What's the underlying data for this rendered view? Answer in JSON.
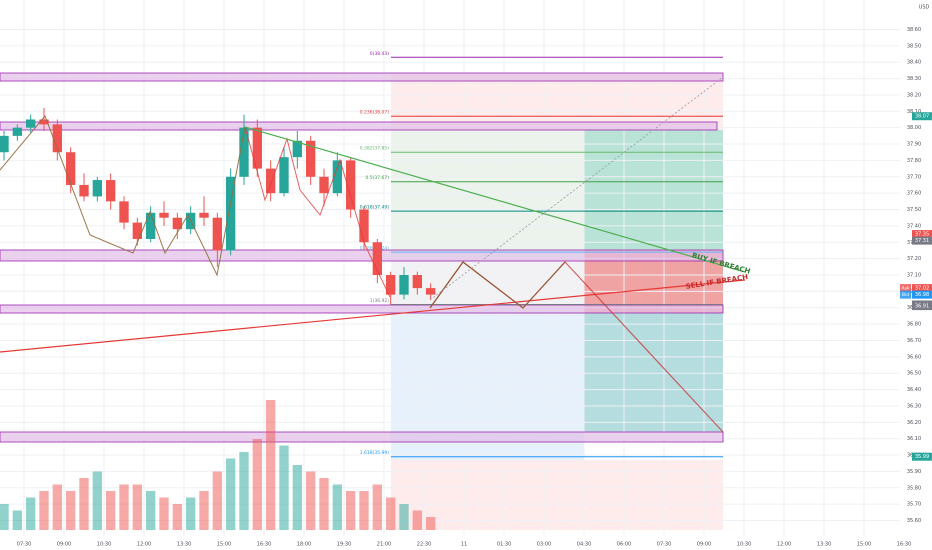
{
  "chart_data": {
    "type": "candlestick",
    "currency": "USD",
    "xlim": [
      -0.9,
      32.85
    ],
    "ylim": [
      35.42,
      38.78
    ],
    "grid": true,
    "up_color": "#26a69a",
    "down_color": "#ef5350",
    "xticks": [
      {
        "value": 0,
        "label": "07:30"
      },
      {
        "value": 1.5,
        "label": "09:00"
      },
      {
        "value": 3,
        "label": "10:30"
      },
      {
        "value": 4.5,
        "label": "12:00"
      },
      {
        "value": 6,
        "label": "13:30"
      },
      {
        "value": 7.5,
        "label": "15:00"
      },
      {
        "value": 9,
        "label": "16:30"
      },
      {
        "value": 10.5,
        "label": "18:00"
      },
      {
        "value": 12,
        "label": "19:30"
      },
      {
        "value": 13.5,
        "label": "21:00"
      },
      {
        "value": 15,
        "label": "22:30"
      },
      {
        "value": 16.5,
        "label": "11"
      },
      {
        "value": 18,
        "label": "01:30"
      },
      {
        "value": 19.5,
        "label": "03:00"
      },
      {
        "value": 21,
        "label": "04:30"
      },
      {
        "value": 22.5,
        "label": "06:00"
      },
      {
        "value": 24,
        "label": "07:30"
      },
      {
        "value": 25.5,
        "label": "09:00"
      },
      {
        "value": 27,
        "label": "10:30"
      },
      {
        "value": 28.5,
        "label": "12:00"
      },
      {
        "value": 30,
        "label": "13:30"
      },
      {
        "value": 31.5,
        "label": "15:00"
      },
      {
        "value": 33,
        "label": "16:30"
      }
    ],
    "yticks": [
      {
        "value": 38.6,
        "label": "38.60"
      },
      {
        "value": 38.5,
        "label": "38.50"
      },
      {
        "value": 38.4,
        "label": "38.40"
      },
      {
        "value": 38.3,
        "label": "38.30"
      },
      {
        "value": 38.2,
        "label": "38.20"
      },
      {
        "value": 38.1,
        "label": "38.10"
      },
      {
        "value": 38,
        "label": "38.00"
      },
      {
        "value": 37.9,
        "label": "37.90"
      },
      {
        "value": 37.8,
        "label": "37.80"
      },
      {
        "value": 37.7,
        "label": "37.70"
      },
      {
        "value": 37.6,
        "label": "37.60"
      },
      {
        "value": 37.5,
        "label": "37.50"
      },
      {
        "value": 37.4,
        "label": "37.40"
      },
      {
        "value": 37.3,
        "label": "37.30"
      },
      {
        "value": 37.2,
        "label": "37.20"
      },
      {
        "value": 37.1,
        "label": "37.10"
      },
      {
        "value": 37,
        "label": "37.00"
      },
      {
        "value": 36.9,
        "label": "36.90"
      },
      {
        "value": 36.8,
        "label": "36.80"
      },
      {
        "value": 36.7,
        "label": "36.70"
      },
      {
        "value": 36.6,
        "label": "36.60"
      },
      {
        "value": 36.5,
        "label": "36.50"
      },
      {
        "value": 36.4,
        "label": "36.40"
      },
      {
        "value": 36.3,
        "label": "36.30"
      },
      {
        "value": 36.2,
        "label": "36.20"
      },
      {
        "value": 36.1,
        "label": "36.10"
      },
      {
        "value": 36,
        "label": "36.00"
      },
      {
        "value": 35.9,
        "label": "35.90"
      },
      {
        "value": 35.8,
        "label": "35.80"
      },
      {
        "value": 35.7,
        "label": "35.70"
      },
      {
        "value": 35.6,
        "label": "35.60"
      }
    ],
    "x": [
      -0.75,
      -0.25,
      0.25,
      0.75,
      1.25,
      1.75,
      2.25,
      2.75,
      3.25,
      3.75,
      4.25,
      4.75,
      5.25,
      5.75,
      6.25,
      6.75,
      7.25,
      7.75,
      8.25,
      8.75,
      9.25,
      9.75,
      10.25,
      10.75,
      11.25,
      11.75,
      12.25,
      12.75,
      13.25,
      13.75,
      14.25,
      14.75,
      15.25
    ],
    "open": [
      37.85,
      37.95,
      38.0,
      38.05,
      38.02,
      37.85,
      37.65,
      37.58,
      37.68,
      37.55,
      37.42,
      37.32,
      37.48,
      37.45,
      37.38,
      37.48,
      37.45,
      37.25,
      37.7,
      38.0,
      37.75,
      37.6,
      37.82,
      37.92,
      37.7,
      37.6,
      37.8,
      37.5,
      37.3,
      37.1,
      36.98,
      37.1,
      37.02
    ],
    "high": [
      37.98,
      38.02,
      38.08,
      38.12,
      38.05,
      37.88,
      37.72,
      37.7,
      37.72,
      37.58,
      37.45,
      37.52,
      37.55,
      37.48,
      37.52,
      37.58,
      37.48,
      37.75,
      38.08,
      38.05,
      37.8,
      37.88,
      37.98,
      37.95,
      37.75,
      37.85,
      37.82,
      37.52,
      37.32,
      37.12,
      37.15,
      37.12,
      37.05
    ],
    "low": [
      37.8,
      37.92,
      37.97,
      37.98,
      37.8,
      37.6,
      37.55,
      37.55,
      37.5,
      37.38,
      37.28,
      37.3,
      37.4,
      37.32,
      37.35,
      37.4,
      37.15,
      37.22,
      37.65,
      37.7,
      37.55,
      37.58,
      37.75,
      37.65,
      37.52,
      37.58,
      37.45,
      37.25,
      37.05,
      36.92,
      36.95,
      36.98,
      36.95
    ],
    "close": [
      37.95,
      38.0,
      38.05,
      38.02,
      37.85,
      37.65,
      37.58,
      37.68,
      37.55,
      37.42,
      37.32,
      37.48,
      37.45,
      37.38,
      37.48,
      37.45,
      37.25,
      37.7,
      38.0,
      37.75,
      37.6,
      37.82,
      37.92,
      37.7,
      37.6,
      37.8,
      37.5,
      37.3,
      37.1,
      36.98,
      37.1,
      37.02,
      36.98
    ],
    "volume": [
      20,
      15,
      25,
      30,
      35,
      30,
      40,
      45,
      30,
      35,
      35,
      30,
      25,
      20,
      25,
      30,
      45,
      55,
      60,
      70,
      100,
      65,
      50,
      45,
      40,
      35,
      30,
      30,
      35,
      25,
      20,
      15,
      10
    ],
    "fib_levels": [
      {
        "value": 38.43,
        "label": "0(38.43)",
        "color": "#9c27b0"
      },
      {
        "value": 38.07,
        "label": "0.236(38.07)",
        "color": "#e53935"
      },
      {
        "value": 37.85,
        "label": "0.382(37.85)",
        "color": "#66bb6a"
      },
      {
        "value": 37.67,
        "label": "0.5(37.67)",
        "color": "#43a047"
      },
      {
        "value": 37.49,
        "label": "0.618(37.49)",
        "color": "#00897b"
      },
      {
        "value": 37.24,
        "label": "0.786(37.24)",
        "color": "#64b5f6"
      },
      {
        "value": 36.92,
        "label": "1(36.92)",
        "color": "#787b86"
      },
      {
        "value": 35.99,
        "label": "1.618(35.99)",
        "color": "#2196f3"
      }
    ],
    "price_labels": [
      {
        "value": 38.07,
        "label": "38.07",
        "color": "#26a69a"
      },
      {
        "value": 37.35,
        "label": "37.35",
        "color": "#ef5350"
      },
      {
        "value": 37.31,
        "label": "37.31",
        "color": "#787b86"
      },
      {
        "value": 37.02,
        "label": "37.02",
        "color": "#ef5350",
        "tag": "Ask"
      },
      {
        "value": 36.98,
        "label": "36.98",
        "color": "#2196f3",
        "tag": "Bid"
      },
      {
        "value": 36.92,
        "label": "36.92",
        "color": "#787b86"
      },
      {
        "value": 36.91,
        "label": "36.91",
        "color": "#787b86"
      },
      {
        "value": 35.99,
        "label": "35.99",
        "color": "#26a69a"
      }
    ],
    "annotations": [
      "BUY IF BREACH",
      "SELL IF BREACH"
    ]
  }
}
